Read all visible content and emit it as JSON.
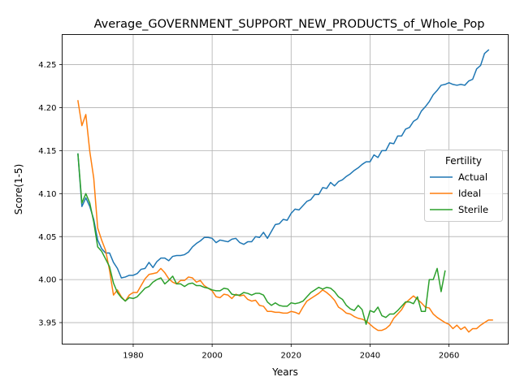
{
  "chart_data": {
    "type": "line",
    "title": "Average_GOVERNMENT_SUPPORT_NEW_PRODUCTS_of_Whole_Pop",
    "xlabel": "Years",
    "ylabel": "Score(1-5)",
    "xlim": [
      1962,
      2075
    ],
    "ylim": [
      3.925,
      4.285
    ],
    "xticks": [
      1980,
      2000,
      2020,
      2040,
      2060
    ],
    "yticks": [
      3.95,
      4.0,
      4.05,
      4.1,
      4.15,
      4.2,
      4.25
    ],
    "ytick_labels": [
      "3.95",
      "4.00",
      "4.05",
      "4.10",
      "4.15",
      "4.20",
      "4.25"
    ],
    "grid": true,
    "legend": {
      "title": "Fertility",
      "position": "center-right"
    },
    "series": [
      {
        "name": "Actual",
        "color": "#1f77b4",
        "points": [
          [
            1966,
            4.146
          ],
          [
            1967,
            4.085
          ],
          [
            1968,
            4.095
          ],
          [
            1969,
            4.085
          ],
          [
            1970,
            4.07
          ],
          [
            1971,
            4.046
          ],
          [
            1972,
            4.036
          ],
          [
            1973,
            4.031
          ],
          [
            1974,
            4.031
          ],
          [
            1975,
            4.02
          ],
          [
            1976,
            4.013
          ],
          [
            1977,
            4.002
          ],
          [
            1978,
            4.003
          ],
          [
            1979,
            4.005
          ],
          [
            1980,
            4.005
          ],
          [
            1981,
            4.007
          ],
          [
            1982,
            4.012
          ],
          [
            1983,
            4.013
          ],
          [
            1984,
            4.02
          ],
          [
            1985,
            4.014
          ],
          [
            1986,
            4.021
          ],
          [
            1987,
            4.025
          ],
          [
            1988,
            4.025
          ],
          [
            1989,
            4.022
          ],
          [
            1990,
            4.027
          ],
          [
            1991,
            4.028
          ],
          [
            1992,
            4.028
          ],
          [
            1993,
            4.029
          ],
          [
            1994,
            4.032
          ],
          [
            1995,
            4.038
          ],
          [
            1996,
            4.042
          ],
          [
            1997,
            4.045
          ],
          [
            1998,
            4.049
          ],
          [
            1999,
            4.049
          ],
          [
            2000,
            4.048
          ],
          [
            2001,
            4.043
          ],
          [
            2002,
            4.046
          ],
          [
            2003,
            4.045
          ],
          [
            2004,
            4.044
          ],
          [
            2005,
            4.047
          ],
          [
            2006,
            4.048
          ],
          [
            2007,
            4.043
          ],
          [
            2008,
            4.041
          ],
          [
            2009,
            4.044
          ],
          [
            2010,
            4.044
          ],
          [
            2011,
            4.05
          ],
          [
            2012,
            4.049
          ],
          [
            2013,
            4.055
          ],
          [
            2014,
            4.048
          ],
          [
            2015,
            4.056
          ],
          [
            2016,
            4.064
          ],
          [
            2017,
            4.065
          ],
          [
            2018,
            4.07
          ],
          [
            2019,
            4.069
          ],
          [
            2020,
            4.077
          ],
          [
            2021,
            4.082
          ],
          [
            2022,
            4.081
          ],
          [
            2023,
            4.086
          ],
          [
            2024,
            4.091
          ],
          [
            2025,
            4.093
          ],
          [
            2026,
            4.099
          ],
          [
            2027,
            4.099
          ],
          [
            2028,
            4.107
          ],
          [
            2029,
            4.106
          ],
          [
            2030,
            4.113
          ],
          [
            2031,
            4.109
          ],
          [
            2032,
            4.114
          ],
          [
            2033,
            4.116
          ],
          [
            2034,
            4.12
          ],
          [
            2035,
            4.123
          ],
          [
            2036,
            4.127
          ],
          [
            2037,
            4.13
          ],
          [
            2038,
            4.134
          ],
          [
            2039,
            4.137
          ],
          [
            2040,
            4.137
          ],
          [
            2041,
            4.145
          ],
          [
            2042,
            4.142
          ],
          [
            2043,
            4.15
          ],
          [
            2044,
            4.15
          ],
          [
            2045,
            4.159
          ],
          [
            2046,
            4.158
          ],
          [
            2047,
            4.167
          ],
          [
            2048,
            4.167
          ],
          [
            2049,
            4.175
          ],
          [
            2050,
            4.177
          ],
          [
            2051,
            4.184
          ],
          [
            2052,
            4.187
          ],
          [
            2053,
            4.196
          ],
          [
            2054,
            4.201
          ],
          [
            2055,
            4.207
          ],
          [
            2056,
            4.215
          ],
          [
            2057,
            4.22
          ],
          [
            2058,
            4.226
          ],
          [
            2059,
            4.227
          ],
          [
            2060,
            4.229
          ],
          [
            2061,
            4.227
          ],
          [
            2062,
            4.226
          ],
          [
            2063,
            4.227
          ],
          [
            2064,
            4.226
          ],
          [
            2065,
            4.231
          ],
          [
            2066,
            4.233
          ],
          [
            2067,
            4.245
          ],
          [
            2068,
            4.249
          ],
          [
            2069,
            4.263
          ],
          [
            2070,
            4.267
          ]
        ]
      },
      {
        "name": "Ideal",
        "color": "#ff7f0e",
        "points": [
          [
            1966,
            4.208
          ],
          [
            1967,
            4.179
          ],
          [
            1968,
            4.192
          ],
          [
            1969,
            4.149
          ],
          [
            1970,
            4.118
          ],
          [
            1971,
            4.06
          ],
          [
            1972,
            4.046
          ],
          [
            1973,
            4.034
          ],
          [
            1974,
            4.011
          ],
          [
            1975,
            3.982
          ],
          [
            1976,
            3.988
          ],
          [
            1977,
            3.98
          ],
          [
            1978,
            3.975
          ],
          [
            1979,
            3.982
          ],
          [
            1980,
            3.985
          ],
          [
            1981,
            3.985
          ],
          [
            1982,
            3.993
          ],
          [
            1983,
            4.001
          ],
          [
            1984,
            4.006
          ],
          [
            1985,
            4.007
          ],
          [
            1986,
            4.008
          ],
          [
            1987,
            4.013
          ],
          [
            1988,
            4.008
          ],
          [
            1989,
            4.001
          ],
          [
            1990,
            3.997
          ],
          [
            1991,
            3.995
          ],
          [
            1992,
            3.999
          ],
          [
            1993,
            3.999
          ],
          [
            1994,
            4.003
          ],
          [
            1995,
            4.002
          ],
          [
            1996,
            3.997
          ],
          [
            1997,
            3.999
          ],
          [
            1998,
            3.993
          ],
          [
            1999,
            3.99
          ],
          [
            2000,
            3.987
          ],
          [
            2001,
            3.98
          ],
          [
            2002,
            3.979
          ],
          [
            2003,
            3.983
          ],
          [
            2004,
            3.982
          ],
          [
            2005,
            3.978
          ],
          [
            2006,
            3.983
          ],
          [
            2007,
            3.981
          ],
          [
            2008,
            3.982
          ],
          [
            2009,
            3.977
          ],
          [
            2010,
            3.975
          ],
          [
            2011,
            3.976
          ],
          [
            2012,
            3.97
          ],
          [
            2013,
            3.969
          ],
          [
            2014,
            3.963
          ],
          [
            2015,
            3.963
          ],
          [
            2016,
            3.962
          ],
          [
            2017,
            3.962
          ],
          [
            2018,
            3.961
          ],
          [
            2019,
            3.961
          ],
          [
            2020,
            3.963
          ],
          [
            2021,
            3.962
          ],
          [
            2022,
            3.96
          ],
          [
            2023,
            3.968
          ],
          [
            2024,
            3.975
          ],
          [
            2025,
            3.978
          ],
          [
            2026,
            3.981
          ],
          [
            2027,
            3.984
          ],
          [
            2028,
            3.988
          ],
          [
            2029,
            3.985
          ],
          [
            2030,
            3.981
          ],
          [
            2031,
            3.976
          ],
          [
            2032,
            3.968
          ],
          [
            2033,
            3.965
          ],
          [
            2034,
            3.961
          ],
          [
            2035,
            3.96
          ],
          [
            2036,
            3.957
          ],
          [
            2037,
            3.955
          ],
          [
            2038,
            3.954
          ],
          [
            2039,
            3.952
          ],
          [
            2040,
            3.948
          ],
          [
            2041,
            3.944
          ],
          [
            2042,
            3.941
          ],
          [
            2043,
            3.941
          ],
          [
            2044,
            3.943
          ],
          [
            2045,
            3.947
          ],
          [
            2046,
            3.955
          ],
          [
            2047,
            3.96
          ],
          [
            2048,
            3.965
          ],
          [
            2049,
            3.973
          ],
          [
            2050,
            3.977
          ],
          [
            2051,
            3.981
          ],
          [
            2052,
            3.977
          ],
          [
            2053,
            3.973
          ],
          [
            2054,
            3.968
          ],
          [
            2055,
            3.967
          ],
          [
            2056,
            3.96
          ],
          [
            2057,
            3.956
          ],
          [
            2058,
            3.953
          ],
          [
            2059,
            3.95
          ],
          [
            2060,
            3.948
          ],
          [
            2061,
            3.943
          ],
          [
            2062,
            3.947
          ],
          [
            2063,
            3.942
          ],
          [
            2064,
            3.945
          ],
          [
            2065,
            3.939
          ],
          [
            2066,
            3.943
          ],
          [
            2067,
            3.943
          ],
          [
            2068,
            3.947
          ],
          [
            2069,
            3.95
          ],
          [
            2070,
            3.953
          ],
          [
            2071,
            3.953
          ]
        ]
      },
      {
        "name": "Sterile",
        "color": "#2ca02c",
        "points": [
          [
            1966,
            4.146
          ],
          [
            1967,
            4.089
          ],
          [
            1968,
            4.1
          ],
          [
            1969,
            4.089
          ],
          [
            1970,
            4.067
          ],
          [
            1971,
            4.038
          ],
          [
            1972,
            4.033
          ],
          [
            1973,
            4.024
          ],
          [
            1974,
            4.015
          ],
          [
            1975,
            3.996
          ],
          [
            1976,
            3.985
          ],
          [
            1977,
            3.979
          ],
          [
            1978,
            3.975
          ],
          [
            1979,
            3.979
          ],
          [
            1980,
            3.978
          ],
          [
            1981,
            3.98
          ],
          [
            1982,
            3.985
          ],
          [
            1983,
            3.99
          ],
          [
            1984,
            3.992
          ],
          [
            1985,
            3.997
          ],
          [
            1986,
            4.0
          ],
          [
            1987,
            4.002
          ],
          [
            1988,
            3.995
          ],
          [
            1989,
            3.999
          ],
          [
            1990,
            4.004
          ],
          [
            1991,
            3.995
          ],
          [
            1992,
            3.995
          ],
          [
            1993,
            3.992
          ],
          [
            1994,
            3.995
          ],
          [
            1995,
            3.996
          ],
          [
            1996,
            3.993
          ],
          [
            1997,
            3.993
          ],
          [
            1998,
            3.991
          ],
          [
            1999,
            3.99
          ],
          [
            2000,
            3.988
          ],
          [
            2001,
            3.987
          ],
          [
            2002,
            3.987
          ],
          [
            2003,
            3.99
          ],
          [
            2004,
            3.989
          ],
          [
            2005,
            3.983
          ],
          [
            2006,
            3.982
          ],
          [
            2007,
            3.982
          ],
          [
            2008,
            3.985
          ],
          [
            2009,
            3.984
          ],
          [
            2010,
            3.982
          ],
          [
            2011,
            3.984
          ],
          [
            2012,
            3.984
          ],
          [
            2013,
            3.982
          ],
          [
            2014,
            3.974
          ],
          [
            2015,
            3.97
          ],
          [
            2016,
            3.973
          ],
          [
            2017,
            3.97
          ],
          [
            2018,
            3.969
          ],
          [
            2019,
            3.969
          ],
          [
            2020,
            3.973
          ],
          [
            2021,
            3.972
          ],
          [
            2022,
            3.973
          ],
          [
            2023,
            3.975
          ],
          [
            2024,
            3.98
          ],
          [
            2025,
            3.985
          ],
          [
            2026,
            3.988
          ],
          [
            2027,
            3.991
          ],
          [
            2028,
            3.989
          ],
          [
            2029,
            3.991
          ],
          [
            2030,
            3.99
          ],
          [
            2031,
            3.986
          ],
          [
            2032,
            3.98
          ],
          [
            2033,
            3.977
          ],
          [
            2034,
            3.97
          ],
          [
            2035,
            3.966
          ],
          [
            2036,
            3.964
          ],
          [
            2037,
            3.97
          ],
          [
            2038,
            3.965
          ],
          [
            2039,
            3.948
          ],
          [
            2040,
            3.964
          ],
          [
            2041,
            3.962
          ],
          [
            2042,
            3.968
          ],
          [
            2043,
            3.958
          ],
          [
            2044,
            3.956
          ],
          [
            2045,
            3.96
          ],
          [
            2046,
            3.96
          ],
          [
            2047,
            3.964
          ],
          [
            2048,
            3.969
          ],
          [
            2049,
            3.974
          ],
          [
            2050,
            3.974
          ],
          [
            2051,
            3.972
          ],
          [
            2052,
            3.98
          ],
          [
            2053,
            3.963
          ],
          [
            2054,
            3.963
          ],
          [
            2055,
            4.0
          ],
          [
            2056,
            4.0
          ],
          [
            2057,
            4.013
          ],
          [
            2058,
            3.986
          ],
          [
            2059,
            4.01
          ]
        ]
      }
    ]
  }
}
